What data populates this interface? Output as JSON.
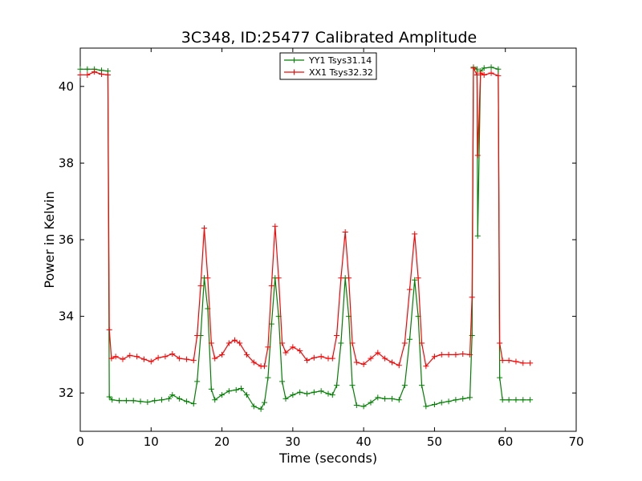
{
  "chart_data": {
    "type": "line",
    "title": "3C348, ID:25477 Calibrated Amplitude",
    "xlabel": "Time (seconds)",
    "ylabel": "Power in Kelvin",
    "xlim": [
      0,
      70
    ],
    "ylim": [
      31.0,
      41.0
    ],
    "xticks": [
      0,
      10,
      20,
      30,
      40,
      50,
      60,
      70
    ],
    "yticks": [
      32,
      34,
      36,
      38,
      40
    ],
    "grid": false,
    "legend_position": "upper-center",
    "marker": "plus",
    "series": [
      {
        "name": "YY1 Tsys31.14",
        "color": "#008000",
        "points": [
          [
            0,
            40.45
          ],
          [
            1,
            40.45
          ],
          [
            2,
            40.45
          ],
          [
            3,
            40.42
          ],
          [
            3.9,
            40.4
          ],
          [
            4.1,
            31.9
          ],
          [
            4.5,
            31.82
          ],
          [
            5.5,
            31.8
          ],
          [
            6.5,
            31.8
          ],
          [
            7.5,
            31.8
          ],
          [
            8.5,
            31.78
          ],
          [
            9.5,
            31.76
          ],
          [
            10.5,
            31.8
          ],
          [
            11.5,
            31.82
          ],
          [
            12.5,
            31.85
          ],
          [
            13,
            31.95
          ],
          [
            14,
            31.85
          ],
          [
            15,
            31.78
          ],
          [
            16,
            31.72
          ],
          [
            16.5,
            32.3
          ],
          [
            17,
            33.5
          ],
          [
            17.5,
            35.0
          ],
          [
            18,
            34.2
          ],
          [
            18.5,
            32.1
          ],
          [
            19,
            31.82
          ],
          [
            20,
            31.95
          ],
          [
            21,
            32.05
          ],
          [
            22,
            32.08
          ],
          [
            22.7,
            32.12
          ],
          [
            23.5,
            31.95
          ],
          [
            24.5,
            31.65
          ],
          [
            25.5,
            31.58
          ],
          [
            26,
            31.75
          ],
          [
            26.5,
            32.4
          ],
          [
            27,
            33.8
          ],
          [
            27.5,
            35.0
          ],
          [
            28,
            34.0
          ],
          [
            28.5,
            32.3
          ],
          [
            29,
            31.85
          ],
          [
            30,
            31.95
          ],
          [
            31,
            32.02
          ],
          [
            32,
            31.98
          ],
          [
            33,
            32.02
          ],
          [
            34,
            32.05
          ],
          [
            35,
            31.98
          ],
          [
            35.6,
            31.95
          ],
          [
            36.2,
            32.2
          ],
          [
            36.8,
            33.3
          ],
          [
            37.4,
            35.0
          ],
          [
            37.9,
            34.0
          ],
          [
            38.4,
            32.2
          ],
          [
            39,
            31.68
          ],
          [
            40,
            31.65
          ],
          [
            41,
            31.75
          ],
          [
            42,
            31.88
          ],
          [
            43,
            31.85
          ],
          [
            44,
            31.85
          ],
          [
            45,
            31.82
          ],
          [
            45.8,
            32.2
          ],
          [
            46.5,
            33.4
          ],
          [
            47.2,
            34.95
          ],
          [
            47.7,
            34.0
          ],
          [
            48.2,
            32.2
          ],
          [
            48.8,
            31.65
          ],
          [
            50,
            31.7
          ],
          [
            51,
            31.75
          ],
          [
            52,
            31.78
          ],
          [
            53,
            31.82
          ],
          [
            54,
            31.85
          ],
          [
            55,
            31.88
          ],
          [
            55.3,
            33.5
          ],
          [
            55.5,
            40.5
          ],
          [
            56,
            40.45
          ],
          [
            56.1,
            36.1
          ],
          [
            56.5,
            40.4
          ],
          [
            57,
            40.48
          ],
          [
            58,
            40.5
          ],
          [
            59,
            40.45
          ],
          [
            59.2,
            32.4
          ],
          [
            59.6,
            31.82
          ],
          [
            60.5,
            31.82
          ],
          [
            61.5,
            31.82
          ],
          [
            62.5,
            31.82
          ],
          [
            63.5,
            31.82
          ]
        ]
      },
      {
        "name": "XX1 Tsys32.32",
        "color": "#ff0000",
        "points": [
          [
            0,
            40.3
          ],
          [
            1,
            40.3
          ],
          [
            2,
            40.38
          ],
          [
            3,
            40.32
          ],
          [
            3.9,
            40.3
          ],
          [
            4.1,
            33.65
          ],
          [
            4.4,
            32.9
          ],
          [
            5,
            32.95
          ],
          [
            6,
            32.88
          ],
          [
            7,
            32.98
          ],
          [
            8,
            32.95
          ],
          [
            9,
            32.88
          ],
          [
            10,
            32.82
          ],
          [
            11,
            32.92
          ],
          [
            12,
            32.95
          ],
          [
            13,
            33.02
          ],
          [
            14,
            32.9
          ],
          [
            15,
            32.88
          ],
          [
            16,
            32.85
          ],
          [
            16.5,
            33.5
          ],
          [
            17,
            34.8
          ],
          [
            17.5,
            36.3
          ],
          [
            18,
            35.0
          ],
          [
            18.5,
            33.3
          ],
          [
            19,
            32.9
          ],
          [
            20,
            33.0
          ],
          [
            21,
            33.3
          ],
          [
            21.8,
            33.38
          ],
          [
            22.5,
            33.3
          ],
          [
            23.5,
            33.0
          ],
          [
            24.5,
            32.8
          ],
          [
            25.5,
            32.7
          ],
          [
            26,
            32.7
          ],
          [
            26.5,
            33.2
          ],
          [
            27,
            34.8
          ],
          [
            27.5,
            36.35
          ],
          [
            28,
            35.0
          ],
          [
            28.5,
            33.3
          ],
          [
            29,
            33.05
          ],
          [
            30,
            33.2
          ],
          [
            31,
            33.1
          ],
          [
            32,
            32.85
          ],
          [
            33,
            32.92
          ],
          [
            34,
            32.95
          ],
          [
            35,
            32.9
          ],
          [
            35.6,
            32.9
          ],
          [
            36.2,
            33.5
          ],
          [
            36.8,
            35.0
          ],
          [
            37.4,
            36.2
          ],
          [
            37.9,
            35.0
          ],
          [
            38.4,
            33.3
          ],
          [
            39,
            32.8
          ],
          [
            40,
            32.75
          ],
          [
            41,
            32.9
          ],
          [
            42,
            33.05
          ],
          [
            43,
            32.9
          ],
          [
            44,
            32.8
          ],
          [
            45,
            32.72
          ],
          [
            45.8,
            33.3
          ],
          [
            46.5,
            34.7
          ],
          [
            47.2,
            36.15
          ],
          [
            47.7,
            35.0
          ],
          [
            48.2,
            33.3
          ],
          [
            48.8,
            32.7
          ],
          [
            50,
            32.95
          ],
          [
            51,
            33.0
          ],
          [
            52,
            33.0
          ],
          [
            53,
            33.0
          ],
          [
            54,
            33.02
          ],
          [
            55,
            33.0
          ],
          [
            55.3,
            34.5
          ],
          [
            55.5,
            40.48
          ],
          [
            56,
            40.3
          ],
          [
            56.1,
            38.2
          ],
          [
            56.5,
            40.35
          ],
          [
            57,
            40.3
          ],
          [
            58,
            40.35
          ],
          [
            59,
            40.28
          ],
          [
            59.2,
            33.3
          ],
          [
            59.6,
            32.85
          ],
          [
            60.5,
            32.85
          ],
          [
            61.5,
            32.82
          ],
          [
            62.5,
            32.78
          ],
          [
            63.5,
            32.78
          ]
        ]
      }
    ]
  }
}
